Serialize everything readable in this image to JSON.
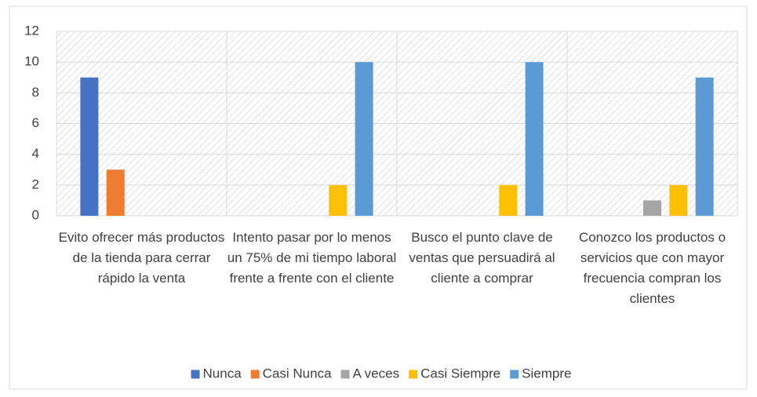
{
  "chart_data": {
    "type": "bar",
    "categories": [
      "Evito ofrecer más productos de la tienda para cerrar rápido la venta",
      "Intento pasar por lo menos un 75% de mi tiempo laboral frente a frente con el cliente",
      "Busco el punto clave de ventas que persuadirá al cliente a comprar",
      "Conozco los productos o servicios que con mayor frecuencia compran los clientes"
    ],
    "series": [
      {
        "name": "Nunca",
        "color": "#4472c4",
        "values": [
          9,
          0,
          0,
          0
        ]
      },
      {
        "name": "Casi Nunca",
        "color": "#ed7d31",
        "values": [
          3,
          0,
          0,
          0
        ]
      },
      {
        "name": "A veces",
        "color": "#a5a5a5",
        "values": [
          0,
          0,
          0,
          1
        ]
      },
      {
        "name": "Casi Siempre",
        "color": "#ffc000",
        "values": [
          0,
          2,
          2,
          2
        ]
      },
      {
        "name": "Siempre",
        "color": "#5b9bd5",
        "values": [
          0,
          10,
          10,
          9
        ]
      }
    ],
    "ylim": [
      0,
      12
    ],
    "yticks": [
      0,
      2,
      4,
      6,
      8,
      10,
      12
    ],
    "grid": true,
    "legend": "bottom"
  }
}
